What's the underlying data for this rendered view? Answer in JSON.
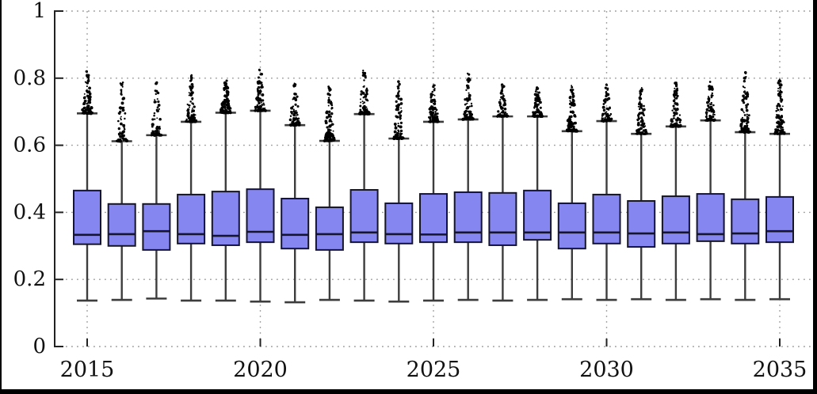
{
  "figure": {
    "title": "",
    "border_color": "#000000",
    "background": "#ffffff"
  },
  "chart_data": {
    "type": "boxplot",
    "title": "",
    "xlabel": "",
    "ylabel": "",
    "grid": "dotted",
    "legend": "none",
    "y_axis": {
      "range": [
        0,
        1
      ],
      "ticks": [
        0,
        0.2,
        0.4,
        0.6,
        0.8,
        1
      ],
      "tick_labels": [
        "0",
        "0.2",
        "0.4",
        "0.6",
        "0.8",
        "1"
      ]
    },
    "x_axis": {
      "range": [
        2015,
        2035
      ],
      "major_tick_years": [
        2015,
        2020,
        2025,
        2030,
        2035
      ],
      "major_tick_labels": [
        "2015",
        "2020",
        "2025",
        "2030",
        "2035"
      ]
    },
    "colors": {
      "box_fill": "#8686f1",
      "box_edge": "#15152e",
      "median": "#15152e",
      "whisker": "#3d3d3d",
      "outlier": "#000000",
      "gridline": "#9a9a9a",
      "axis": "#222222",
      "text": "#111111"
    },
    "boxes": [
      {
        "year": 2015,
        "whisker_low": 0.137,
        "q1": 0.305,
        "median": 0.333,
        "q3": 0.465,
        "whisker_high": 0.695,
        "outlier_max": 0.823
      },
      {
        "year": 2016,
        "whisker_low": 0.139,
        "q1": 0.3,
        "median": 0.335,
        "q3": 0.425,
        "whisker_high": 0.612,
        "outlier_max": 0.8
      },
      {
        "year": 2017,
        "whisker_low": 0.143,
        "q1": 0.288,
        "median": 0.344,
        "q3": 0.425,
        "whisker_high": 0.63,
        "outlier_max": 0.79
      },
      {
        "year": 2018,
        "whisker_low": 0.137,
        "q1": 0.307,
        "median": 0.335,
        "q3": 0.453,
        "whisker_high": 0.67,
        "outlier_max": 0.81
      },
      {
        "year": 2019,
        "whisker_low": 0.137,
        "q1": 0.302,
        "median": 0.33,
        "q3": 0.462,
        "whisker_high": 0.697,
        "outlier_max": 0.795
      },
      {
        "year": 2020,
        "whisker_low": 0.134,
        "q1": 0.311,
        "median": 0.342,
        "q3": 0.469,
        "whisker_high": 0.703,
        "outlier_max": 0.825
      },
      {
        "year": 2021,
        "whisker_low": 0.132,
        "q1": 0.292,
        "median": 0.333,
        "q3": 0.441,
        "whisker_high": 0.66,
        "outlier_max": 0.787
      },
      {
        "year": 2022,
        "whisker_low": 0.139,
        "q1": 0.288,
        "median": 0.335,
        "q3": 0.415,
        "whisker_high": 0.613,
        "outlier_max": 0.778
      },
      {
        "year": 2023,
        "whisker_low": 0.137,
        "q1": 0.311,
        "median": 0.34,
        "q3": 0.467,
        "whisker_high": 0.693,
        "outlier_max": 0.826
      },
      {
        "year": 2024,
        "whisker_low": 0.134,
        "q1": 0.307,
        "median": 0.335,
        "q3": 0.427,
        "whisker_high": 0.62,
        "outlier_max": 0.79
      },
      {
        "year": 2025,
        "whisker_low": 0.137,
        "q1": 0.311,
        "median": 0.334,
        "q3": 0.455,
        "whisker_high": 0.67,
        "outlier_max": 0.79
      },
      {
        "year": 2026,
        "whisker_low": 0.139,
        "q1": 0.311,
        "median": 0.34,
        "q3": 0.46,
        "whisker_high": 0.677,
        "outlier_max": 0.816
      },
      {
        "year": 2027,
        "whisker_low": 0.137,
        "q1": 0.302,
        "median": 0.34,
        "q3": 0.458,
        "whisker_high": 0.686,
        "outlier_max": 0.783
      },
      {
        "year": 2028,
        "whisker_low": 0.139,
        "q1": 0.318,
        "median": 0.34,
        "q3": 0.465,
        "whisker_high": 0.686,
        "outlier_max": 0.778
      },
      {
        "year": 2029,
        "whisker_low": 0.141,
        "q1": 0.292,
        "median": 0.34,
        "q3": 0.427,
        "whisker_high": 0.642,
        "outlier_max": 0.778
      },
      {
        "year": 2030,
        "whisker_low": 0.139,
        "q1": 0.307,
        "median": 0.34,
        "q3": 0.453,
        "whisker_high": 0.672,
        "outlier_max": 0.781
      },
      {
        "year": 2031,
        "whisker_low": 0.141,
        "q1": 0.297,
        "median": 0.337,
        "q3": 0.434,
        "whisker_high": 0.634,
        "outlier_max": 0.774
      },
      {
        "year": 2032,
        "whisker_low": 0.139,
        "q1": 0.307,
        "median": 0.34,
        "q3": 0.448,
        "whisker_high": 0.656,
        "outlier_max": 0.787
      },
      {
        "year": 2033,
        "whisker_low": 0.141,
        "q1": 0.314,
        "median": 0.335,
        "q3": 0.455,
        "whisker_high": 0.674,
        "outlier_max": 0.79
      },
      {
        "year": 2034,
        "whisker_low": 0.139,
        "q1": 0.307,
        "median": 0.337,
        "q3": 0.439,
        "whisker_high": 0.639,
        "outlier_max": 0.82
      },
      {
        "year": 2035,
        "whisker_low": 0.141,
        "q1": 0.311,
        "median": 0.344,
        "q3": 0.446,
        "whisker_high": 0.634,
        "outlier_max": 0.8
      }
    ]
  }
}
